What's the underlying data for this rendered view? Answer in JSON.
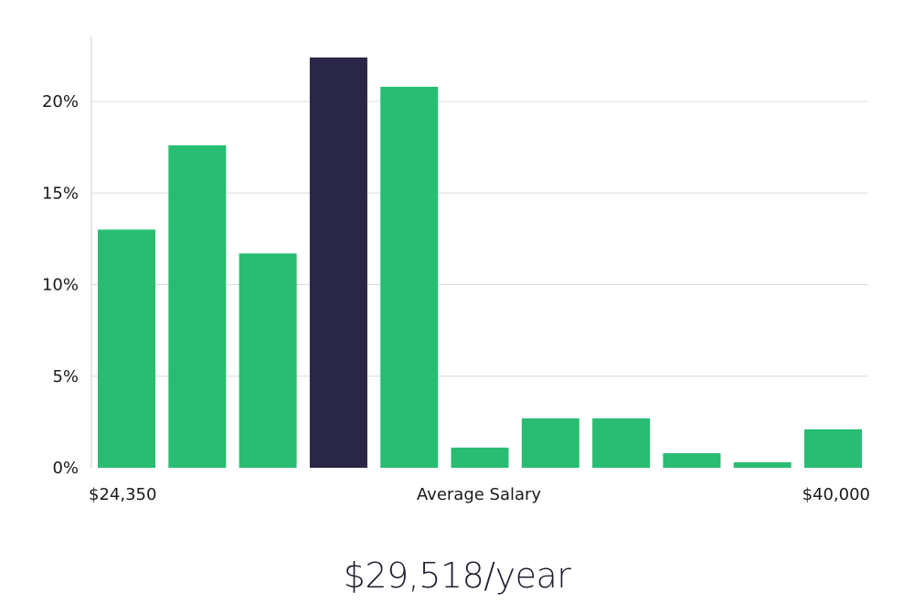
{
  "chart_data": {
    "type": "bar",
    "x_labels": {
      "left": "$24,350",
      "center": "Average Salary",
      "right": "$40,000"
    },
    "y_ticks": [
      "0%",
      "5%",
      "10%",
      "15%",
      "20%"
    ],
    "y_tick_values": [
      0,
      5,
      10,
      15,
      20
    ],
    "ylim": [
      0,
      23.5
    ],
    "values": [
      13.0,
      17.6,
      11.7,
      22.4,
      20.8,
      1.1,
      2.7,
      2.7,
      0.8,
      0.3,
      2.1
    ],
    "highlight_index": 3,
    "grid": true,
    "colors": {
      "bar": "#28bd72",
      "highlight": "#2a2647",
      "grid": "#dcdcdc",
      "axis": "#cfcfcf"
    }
  },
  "summary": {
    "salary": "$29,518/year"
  }
}
